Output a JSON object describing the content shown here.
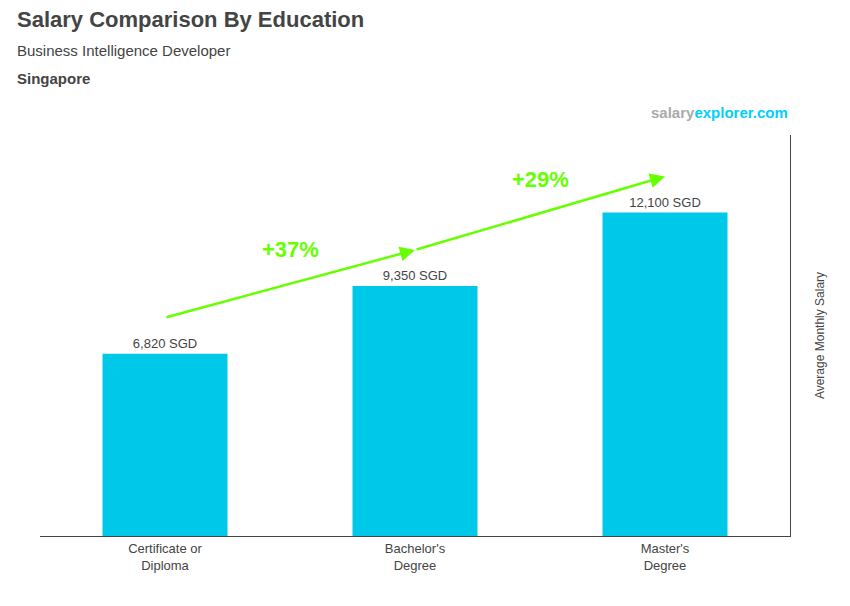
{
  "chart_data": {
    "type": "bar",
    "title": "Salary Comparison By Education",
    "subtitle": "Business Intelligence Developer",
    "location": "Singapore",
    "categories": [
      "Certificate or\nDiploma",
      "Bachelor's\nDegree",
      "Master's\nDegree"
    ],
    "values": [
      6820,
      9350,
      12100
    ],
    "value_labels": [
      "6,820 SGD",
      "9,350 SGD",
      "12,100 SGD"
    ],
    "data_labels": true,
    "color": "#00c8e8",
    "y_label": "Average Monthly Salary",
    "ylim": [
      0,
      15000
    ],
    "tick_labels": "x",
    "grid": false,
    "annotations": [
      {
        "text": "+37%",
        "color": "#66ff00"
      },
      {
        "text": "+29%",
        "color": "#66ff00"
      }
    ],
    "website": {
      "parts": [
        "salary",
        "explorer.com"
      ],
      "colors": [
        "#aaaaaa",
        "#00cfff"
      ]
    }
  }
}
